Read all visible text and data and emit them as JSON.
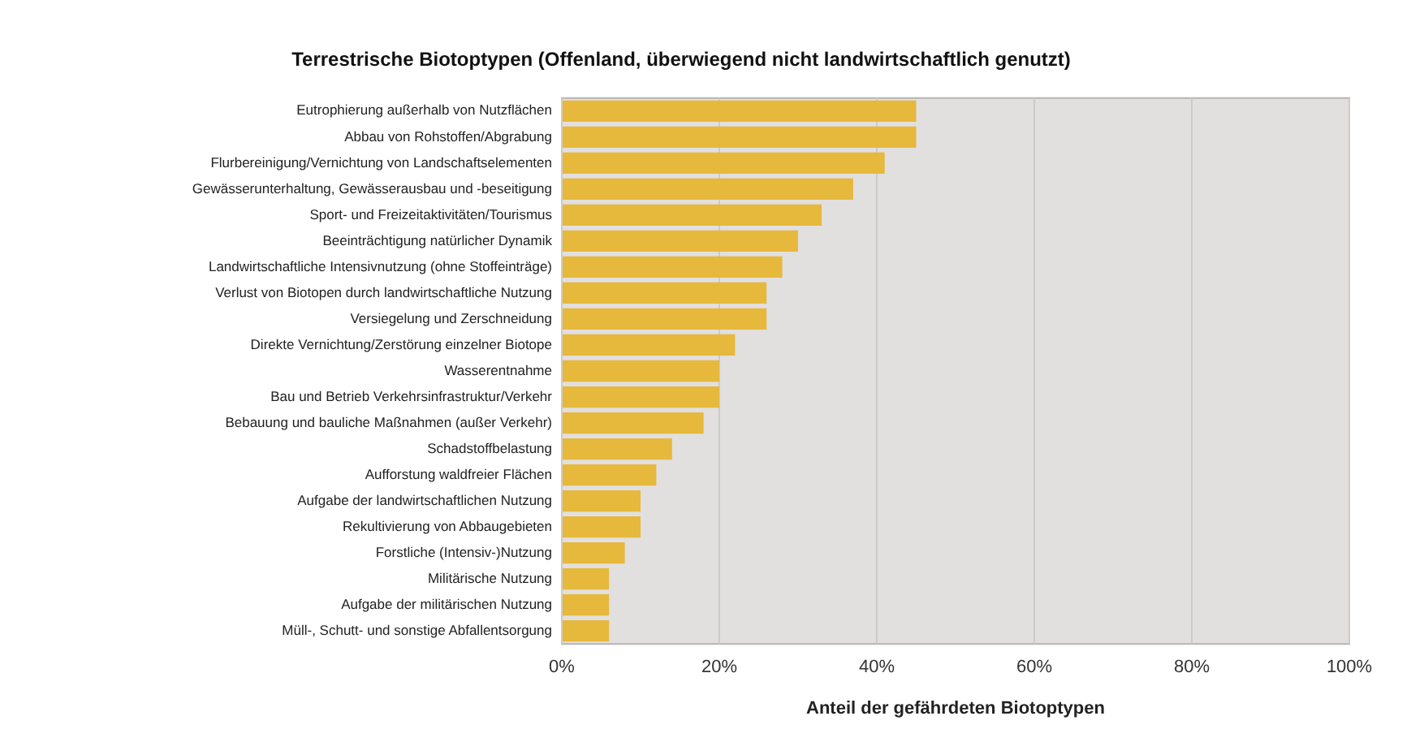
{
  "chart_data": {
    "type": "bar",
    "orientation": "horizontal",
    "title": "Terrestrische Biotoptypen (Offenland, überwiegend nicht landwirtschaftlich genutzt)",
    "xlabel": "Anteil der gefährdeten Biotoptypen",
    "categories": [
      "Eutrophierung außerhalb von Nutzflächen",
      "Abbau von Rohstoffen/Abgrabung",
      "Flurbereinigung/Vernichtung von Landschaftselementen",
      "Gewässerunterhaltung, Gewässerausbau und -beseitigung",
      "Sport- und Freizeitaktivitäten/Tourismus",
      "Beeinträchtigung natürlicher Dynamik",
      "Landwirtschaftliche Intensivnutzung (ohne Stoffeinträge)",
      "Verlust von Biotopen durch landwirtschaftliche Nutzung",
      "Versiegelung und Zerschneidung",
      "Direkte Vernichtung/Zerstörung einzelner Biotope",
      "Wasserentnahme",
      "Bau und Betrieb Verkehrsinfrastruktur/Verkehr",
      "Bebauung und bauliche Maßnahmen (außer Verkehr)",
      "Schadstoffbelastung",
      "Aufforstung waldfreier Flächen",
      "Aufgabe der landwirtschaftlichen Nutzung",
      "Rekultivierung von Abbaugebieten",
      "Forstliche (Intensiv-)Nutzung",
      "Militärische Nutzung",
      "Aufgabe der militärischen Nutzung",
      "Müll-, Schutt- und sonstige Abfallentsorgung"
    ],
    "values": [
      45,
      45,
      41,
      37,
      33,
      30,
      28,
      26,
      26,
      22,
      20,
      20,
      18,
      14,
      12,
      10,
      10,
      8,
      6,
      6,
      6
    ],
    "color": "#e6b83c",
    "xlim": [
      0,
      100
    ],
    "xticks": [
      {
        "value": 0,
        "label": "0%"
      },
      {
        "value": 20,
        "label": "20%"
      },
      {
        "value": 40,
        "label": "40%"
      },
      {
        "value": 60,
        "label": "60%"
      },
      {
        "value": 80,
        "label": "80%"
      },
      {
        "value": 100,
        "label": "100%"
      }
    ],
    "grid": "x",
    "legend": false
  }
}
